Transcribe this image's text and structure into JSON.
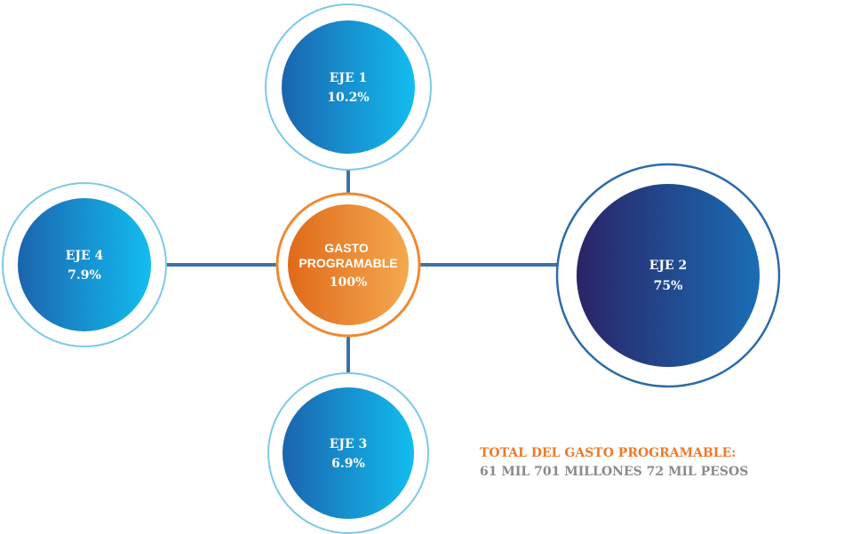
{
  "nodes": [
    {
      "label": "GASTO PROGRAMABLE",
      "value": "100%"
    },
    {
      "label": "EJE 1",
      "value": "10.2%"
    },
    {
      "label": "EJE 2",
      "value": "75%"
    },
    {
      "label": "EJE 3",
      "value": "6.9%"
    },
    {
      "label": "EJE 4",
      "value": "7.9%"
    }
  ],
  "footer": {
    "title": "TOTAL DEL GASTO PROGRAMABLE:",
    "amount": "61 MIL 701 MILLONES 72 MIL PESOS"
  }
}
